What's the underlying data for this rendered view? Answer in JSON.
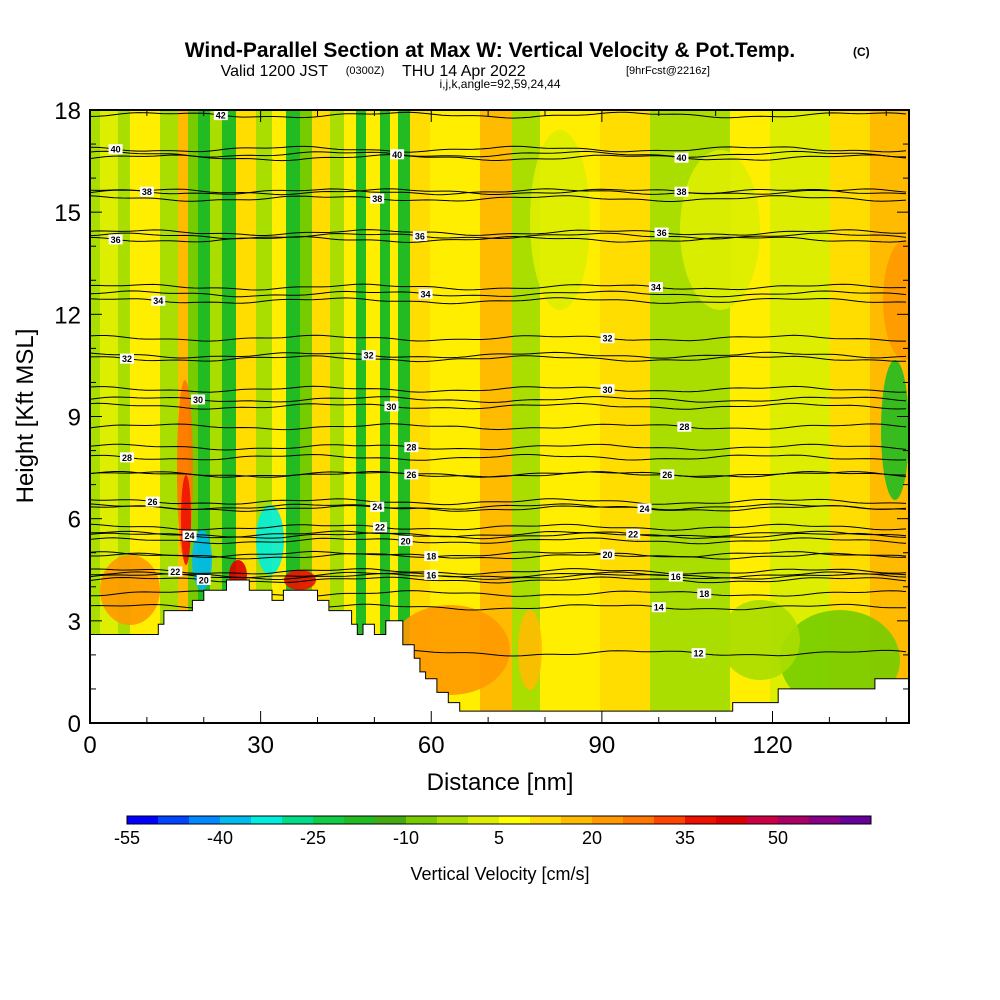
{
  "title": {
    "main": "Wind-Parallel Section at Max W: Vertical Velocity & Pot.Temp.",
    "main_suffix": "(C)",
    "valid_prefix": "Valid 1200 JST",
    "valid_zulu": "(0300Z)",
    "valid_date": "THU 14 Apr 2022",
    "forecast": "[9hrFcst@2216z]",
    "params": "i,j,k,angle=92,59,24,44"
  },
  "chart_data": {
    "type": "heatmap",
    "xlabel": "Distance [nm]",
    "ylabel": "Height [Kft MSL]",
    "xlim": [
      0,
      144
    ],
    "ylim": [
      0,
      18
    ],
    "x_ticks": [
      "0",
      "30",
      "60",
      "90",
      "120"
    ],
    "y_ticks": [
      "0",
      "3",
      "6",
      "9",
      "12",
      "15",
      "18"
    ],
    "colorbar": {
      "title": "Vertical Velocity [cm/s]",
      "tick_labels": [
        "-55",
        "-40",
        "-25",
        "-10",
        "5",
        "20",
        "35",
        "50"
      ],
      "colors": [
        "#0000ff",
        "#0044ff",
        "#0088ff",
        "#00bbee",
        "#00eedd",
        "#00dd88",
        "#11cc44",
        "#22bb22",
        "#44aa11",
        "#77cc00",
        "#aadd00",
        "#ddee00",
        "#ffff00",
        "#ffdd00",
        "#ffbb00",
        "#ff9900",
        "#ff7700",
        "#ff4400",
        "#ee1100",
        "#dd0000",
        "#cc0044",
        "#aa0066",
        "#880088",
        "#660099"
      ]
    },
    "contour_labels": [
      {
        "v": "42",
        "x": 23,
        "y": 17.85
      },
      {
        "v": "40",
        "x": 4.5,
        "y": 16.85
      },
      {
        "v": "38",
        "x": 10,
        "y": 15.6
      },
      {
        "v": "36",
        "x": 4.5,
        "y": 14.2
      },
      {
        "v": "34",
        "x": 12,
        "y": 12.4
      },
      {
        "v": "32",
        "x": 6.5,
        "y": 10.7
      },
      {
        "v": "30",
        "x": 19,
        "y": 9.5
      },
      {
        "v": "28",
        "x": 6.5,
        "y": 7.8
      },
      {
        "v": "26",
        "x": 11,
        "y": 6.5
      },
      {
        "v": "24",
        "x": 17.5,
        "y": 5.5
      },
      {
        "v": "22",
        "x": 15,
        "y": 4.45
      },
      {
        "v": "20",
        "x": 20,
        "y": 4.2
      },
      {
        "v": "40",
        "x": 54,
        "y": 16.7
      },
      {
        "v": "38",
        "x": 50.5,
        "y": 15.4
      },
      {
        "v": "36",
        "x": 58,
        "y": 14.3
      },
      {
        "v": "34",
        "x": 59,
        "y": 12.6
      },
      {
        "v": "32",
        "x": 49,
        "y": 10.8
      },
      {
        "v": "30",
        "x": 53,
        "y": 9.3
      },
      {
        "v": "28",
        "x": 56.5,
        "y": 8.1
      },
      {
        "v": "26",
        "x": 56.5,
        "y": 7.3
      },
      {
        "v": "24",
        "x": 50.5,
        "y": 6.35
      },
      {
        "v": "22",
        "x": 51,
        "y": 5.75
      },
      {
        "v": "20",
        "x": 55.5,
        "y": 5.35
      },
      {
        "v": "18",
        "x": 60,
        "y": 4.9
      },
      {
        "v": "16",
        "x": 60,
        "y": 4.35
      },
      {
        "v": "40",
        "x": 104,
        "y": 16.6
      },
      {
        "v": "38",
        "x": 104,
        "y": 15.6
      },
      {
        "v": "36",
        "x": 100.5,
        "y": 14.4
      },
      {
        "v": "34",
        "x": 99.5,
        "y": 12.8
      },
      {
        "v": "32",
        "x": 91,
        "y": 11.3
      },
      {
        "v": "30",
        "x": 91,
        "y": 9.8
      },
      {
        "v": "28",
        "x": 104.5,
        "y": 8.7
      },
      {
        "v": "26",
        "x": 101.5,
        "y": 7.3
      },
      {
        "v": "24",
        "x": 97.5,
        "y": 6.3
      },
      {
        "v": "22",
        "x": 95.5,
        "y": 5.55
      },
      {
        "v": "20",
        "x": 91,
        "y": 4.95
      },
      {
        "v": "18",
        "x": 108,
        "y": 3.8
      },
      {
        "v": "16",
        "x": 103,
        "y": 4.3
      },
      {
        "v": "14",
        "x": 100,
        "y": 3.4
      },
      {
        "v": "12",
        "x": 107,
        "y": 2.05
      }
    ],
    "terrain_profile_kft": [
      [
        0,
        2.6
      ],
      [
        12,
        2.6
      ],
      [
        12,
        2.9
      ],
      [
        13,
        2.9
      ],
      [
        13,
        3.3
      ],
      [
        18,
        3.3
      ],
      [
        18,
        3.6
      ],
      [
        20,
        3.6
      ],
      [
        20,
        3.9
      ],
      [
        24,
        3.9
      ],
      [
        24,
        4.2
      ],
      [
        28,
        4.2
      ],
      [
        28,
        3.9
      ],
      [
        32,
        3.9
      ],
      [
        32,
        3.6
      ],
      [
        34,
        3.6
      ],
      [
        34,
        3.9
      ],
      [
        40,
        3.9
      ],
      [
        40,
        3.6
      ],
      [
        42,
        3.6
      ],
      [
        42,
        3.3
      ],
      [
        46,
        3.3
      ],
      [
        46,
        2.9
      ],
      [
        47,
        2.9
      ],
      [
        47,
        2.6
      ],
      [
        48,
        2.6
      ],
      [
        48,
        2.9
      ],
      [
        50,
        2.9
      ],
      [
        50,
        2.6
      ],
      [
        52,
        2.6
      ],
      [
        52,
        3.0
      ],
      [
        55,
        3.0
      ],
      [
        55,
        2.3
      ],
      [
        57,
        2.3
      ],
      [
        57,
        1.9
      ],
      [
        58,
        1.9
      ],
      [
        58,
        1.5
      ],
      [
        59,
        1.5
      ],
      [
        59,
        1.3
      ],
      [
        61,
        1.3
      ],
      [
        61,
        0.9
      ],
      [
        63,
        0.9
      ],
      [
        63,
        0.6
      ],
      [
        65,
        0.6
      ],
      [
        65,
        0.35
      ],
      [
        113,
        0.35
      ],
      [
        113,
        0.6
      ],
      [
        121,
        0.6
      ],
      [
        121,
        1.0
      ],
      [
        138,
        1.0
      ],
      [
        138,
        1.3
      ],
      [
        144,
        1.3
      ]
    ]
  },
  "colors": {
    "background_base": "#ffee00",
    "ground": "#ffffff",
    "contour": "#000000"
  }
}
